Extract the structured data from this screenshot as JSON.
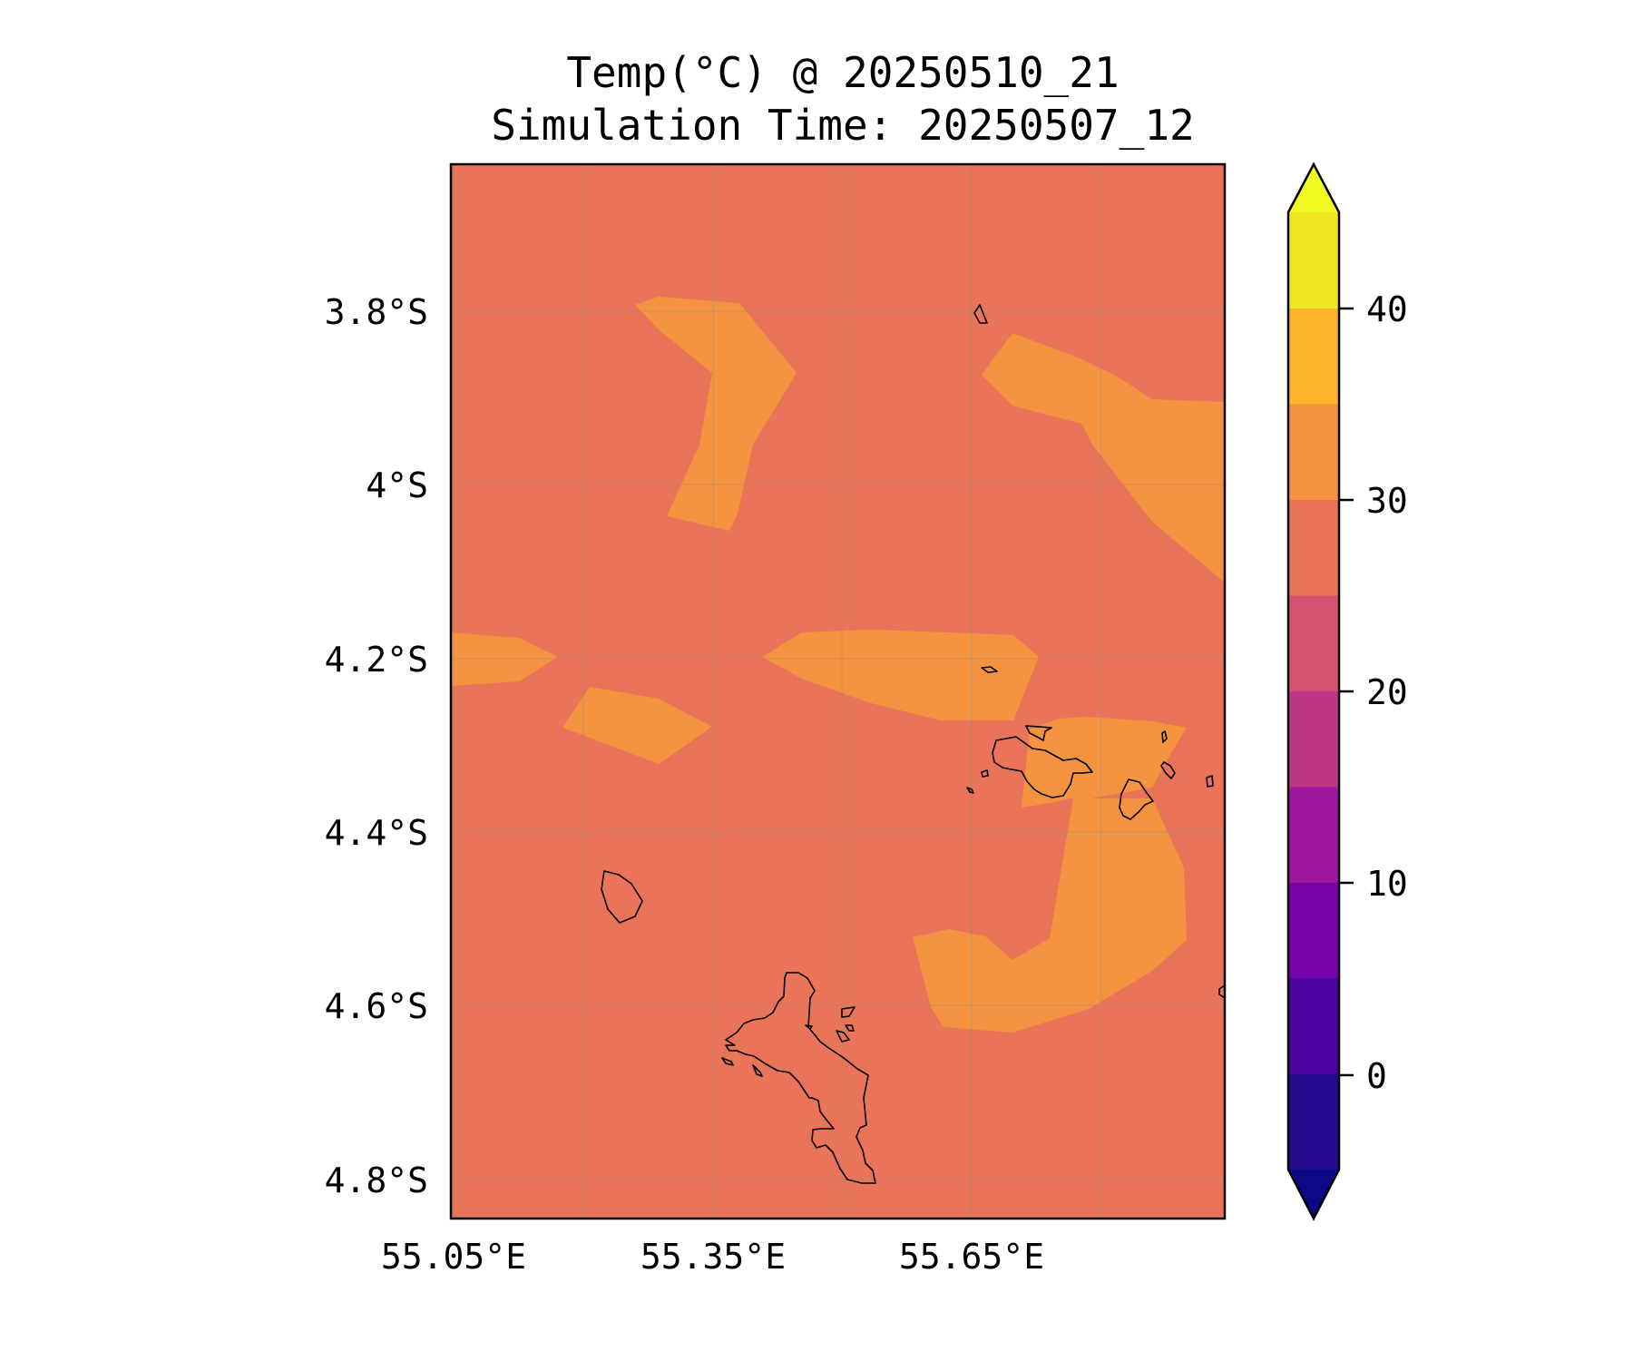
{
  "title": {
    "line1": "Temp(°C) @ 20250510_21",
    "line2": "Simulation Time: 20250507_12"
  },
  "map": {
    "variable": "Temp",
    "unit": "°C",
    "x_ticks": [
      "55.05°E",
      "55.35°E",
      "55.65°E"
    ],
    "y_ticks": [
      "3.8°S",
      "4°S",
      "4.2°S",
      "4.4°S",
      "4.6°S",
      "4.8°S"
    ],
    "fill_bands": {
      "background": {
        "range": [
          25,
          30
        ],
        "color": "#e97459"
      },
      "warm_patches": {
        "range": [
          30,
          35
        ],
        "color": "#f59440"
      }
    },
    "gridlines": true,
    "coastlines": true
  },
  "colorbar": {
    "ticks": [
      "0",
      "10",
      "20",
      "30",
      "40"
    ],
    "range": [
      -5,
      45
    ],
    "extend": "both",
    "bands": [
      {
        "range": [
          -5,
          0
        ],
        "color": "#240a8e"
      },
      {
        "range": [
          0,
          5
        ],
        "color": "#4c03a0"
      },
      {
        "range": [
          5,
          10
        ],
        "color": "#7602a8"
      },
      {
        "range": [
          10,
          15
        ],
        "color": "#9c179e"
      },
      {
        "range": [
          15,
          20
        ],
        "color": "#bd3786"
      },
      {
        "range": [
          20,
          25
        ],
        "color": "#d6536f"
      },
      {
        "range": [
          25,
          30
        ],
        "color": "#e97459"
      },
      {
        "range": [
          30,
          35
        ],
        "color": "#f59440"
      },
      {
        "range": [
          35,
          40
        ],
        "color": "#fdb52e"
      },
      {
        "range": [
          40,
          45
        ],
        "color": "#f0e624"
      }
    ],
    "under_color": "#0d0887",
    "over_color": "#f0f921"
  }
}
